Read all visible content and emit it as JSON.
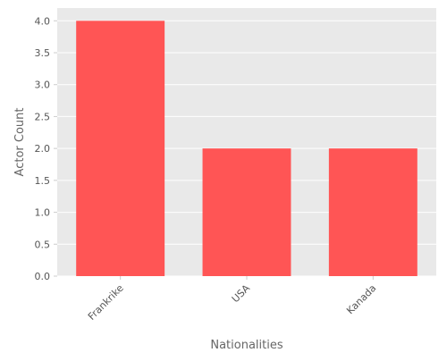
{
  "chart_data": {
    "type": "bar",
    "title": "",
    "categories": [
      "Frankrike",
      "USA",
      "Kanada"
    ],
    "values": [
      4,
      2,
      2
    ],
    "xlabel": "Nationalities",
    "ylabel": "Actor Count",
    "ylim": [
      0,
      4.2
    ],
    "yticks": [
      "0.0",
      "0.5",
      "1.0",
      "1.5",
      "2.0",
      "2.5",
      "3.0",
      "3.5",
      "4.0"
    ],
    "grid": true,
    "legend": "none",
    "colors": {
      "bar": "#ff5555",
      "plot_background": "#e9e9e9",
      "grid": "#ffffff",
      "text": "#555555",
      "axis_label": "#666666"
    }
  }
}
